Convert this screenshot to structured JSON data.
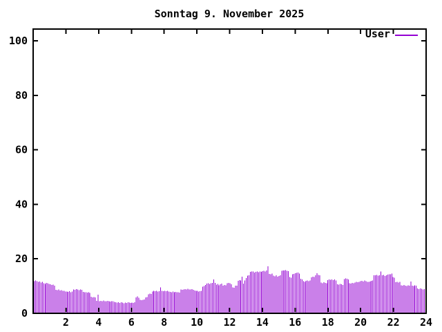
{
  "window": {
    "background": "#ffffff"
  },
  "chart": {
    "title": "Sonntag 9. November 2025",
    "legend": {
      "label": "User"
    }
  },
  "chart_data": {
    "type": "bar",
    "title": "Sonntag 9. November 2025",
    "series_name": "User",
    "color": "#9400D3",
    "axis_color": "#000000",
    "x_unit": "hour of day",
    "interval_minutes": 5,
    "x_range": [
      0,
      24
    ],
    "ylim": [
      0,
      104.4
    ],
    "grid": false,
    "legend_position": "top-right-inside",
    "x_ticks": [
      2,
      4,
      6,
      8,
      10,
      12,
      14,
      16,
      18,
      20,
      22,
      24
    ],
    "y_ticks": [
      0,
      20,
      40,
      60,
      80,
      100
    ],
    "values": [
      11.8,
      12.0,
      11.8,
      11.5,
      11.7,
      11.3,
      11.5,
      11.0,
      10.8,
      11.2,
      11.0,
      10.8,
      10.6,
      10.4,
      10.5,
      10.2,
      8.6,
      8.5,
      8.7,
      8.4,
      8.5,
      8.3,
      8.2,
      8.0,
      8.0,
      7.9,
      8.1,
      7.8,
      8.0,
      8.8,
      8.6,
      8.9,
      8.7,
      8.5,
      8.8,
      8.6,
      7.9,
      7.7,
      7.8,
      7.6,
      7.7,
      7.5,
      6.1,
      5.9,
      6.0,
      5.8,
      4.6,
      6.8,
      4.4,
      4.6,
      4.5,
      4.7,
      4.5,
      4.4,
      4.6,
      4.5,
      4.3,
      4.5,
      4.4,
      4.2,
      4.0,
      3.9,
      4.1,
      3.8,
      4.0,
      3.9,
      3.7,
      3.9,
      3.8,
      4.0,
      3.9,
      3.8,
      3.9,
      3.8,
      4.0,
      5.8,
      6.2,
      5.7,
      4.9,
      4.8,
      5.0,
      5.1,
      5.9,
      6.0,
      7.0,
      7.2,
      7.1,
      8.0,
      8.3,
      8.1,
      8.2,
      8.0,
      8.1,
      9.5,
      8.2,
      8.1,
      8.3,
      8.1,
      8.2,
      8.0,
      7.9,
      7.8,
      8.0,
      7.8,
      7.9,
      7.7,
      7.8,
      7.6,
      8.8,
      8.6,
      8.7,
      8.9,
      8.8,
      9.0,
      8.8,
      8.7,
      8.9,
      8.6,
      8.4,
      8.3,
      8.2,
      8.0,
      8.1,
      8.3,
      9.8,
      10.0,
      10.4,
      10.9,
      11.0,
      10.8,
      11.0,
      11.2,
      12.4,
      11.2,
      10.5,
      10.8,
      10.3,
      10.6,
      10.9,
      10.2,
      10.4,
      10.3,
      11.0,
      11.2,
      11.0,
      10.7,
      9.5,
      9.4,
      10.2,
      10.1,
      11.9,
      12.2,
      12.0,
      13.5,
      10.9,
      12.0,
      13.0,
      13.8,
      13.9,
      15.2,
      15.4,
      15.3,
      15.0,
      15.2,
      15.4,
      15.1,
      15.3,
      15.2,
      15.5,
      15.6,
      15.4,
      15.7,
      17.3,
      14.5,
      14.3,
      14.6,
      13.8,
      13.6,
      13.9,
      13.5,
      13.7,
      13.9,
      15.6,
      15.8,
      15.7,
      15.9,
      15.6,
      15.5,
      13.3,
      13.1,
      14.3,
      14.5,
      14.7,
      14.9,
      15.0,
      14.6,
      12.7,
      12.5,
      11.8,
      11.6,
      11.9,
      12.0,
      11.8,
      12.1,
      13.2,
      13.4,
      13.3,
      14.0,
      14.7,
      14.1,
      13.9,
      11.3,
      11.1,
      11.4,
      11.2,
      11.0,
      12.2,
      12.4,
      12.3,
      12.5,
      12.2,
      12.4,
      12.1,
      10.7,
      10.5,
      10.8,
      10.6,
      10.4,
      12.6,
      12.8,
      12.7,
      12.5,
      11.1,
      10.9,
      11.2,
      11.0,
      11.3,
      11.5,
      11.4,
      11.6,
      11.8,
      11.9,
      11.7,
      12.0,
      11.8,
      11.6,
      11.5,
      11.7,
      11.9,
      12.0,
      13.9,
      14.0,
      14.1,
      13.8,
      14.0,
      15.4,
      13.9,
      14.1,
      13.7,
      14.0,
      14.2,
      14.4,
      14.3,
      14.6,
      13.3,
      13.1,
      11.4,
      11.5,
      11.3,
      11.6,
      10.3,
      10.1,
      10.4,
      10.2,
      10.0,
      10.3,
      10.1,
      11.7,
      10.2,
      10.0,
      10.3,
      10.1,
      9.1,
      8.9,
      9.2,
      9.0,
      8.8,
      8.9
    ]
  }
}
